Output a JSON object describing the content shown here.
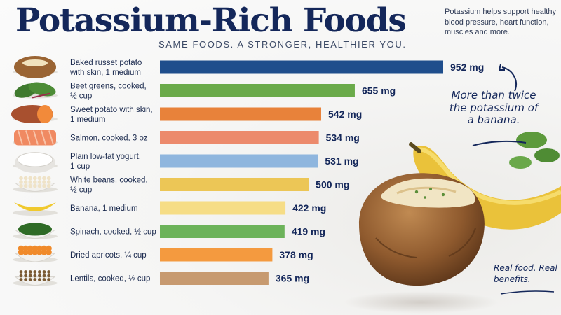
{
  "title": "Potassium-Rich Foods",
  "subtitle": "SAME FOODS. A STRONGER, HEALTHIER YOU.",
  "intro": "Potassium helps support healthy blood pressure, heart function, muscles and more.",
  "callout": "More than twice the potassium of a banana.",
  "tagline": "Real food. Real benefits.",
  "chart_data": {
    "type": "bar",
    "orientation": "horizontal",
    "unit": "mg",
    "categories": [
      "Baked russet potato with skin, 1 medium",
      "Beet greens, cooked, ½ cup",
      "Sweet potato with skin, 1 medium",
      "Salmon, cooked, 3 oz",
      "Plain low-fat yogurt, 1 cup",
      "White beans, cooked, ½ cup",
      "Banana, 1 medium",
      "Spinach, cooked, ½ cup",
      "Dried apricots, ¼ cup",
      "Lentils, cooked, ½ cup"
    ],
    "values": [
      952,
      655,
      542,
      534,
      531,
      500,
      422,
      419,
      378,
      365
    ],
    "value_labels": [
      "952 mg",
      "655 mg",
      "542 mg",
      "534 mg",
      "531 mg",
      "500 mg",
      "422 mg",
      "419 mg",
      "378 mg",
      "365 mg"
    ],
    "label_lines": [
      [
        "Baked russet potato",
        "with skin, 1 medium"
      ],
      [
        "Beet greens, cooked,",
        "½ cup"
      ],
      [
        "Sweet potato with skin,",
        "1 medium"
      ],
      [
        "Salmon, cooked, 3 oz"
      ],
      [
        "Plain low-fat yogurt,",
        "1 cup"
      ],
      [
        "White beans, cooked,",
        "½ cup"
      ],
      [
        "Banana, 1 medium"
      ],
      [
        "Spinach, cooked, ½ cup"
      ],
      [
        "Dried apricots, ¼ cup"
      ],
      [
        "Lentils, cooked, ½ cup"
      ]
    ],
    "colors": [
      "#1f4e8c",
      "#6aaa4a",
      "#e8823a",
      "#ec8a6c",
      "#8fb6de",
      "#ecc656",
      "#f6dd86",
      "#6cb35a",
      "#f49a3f",
      "#c79a70"
    ],
    "icons": [
      "baked-potato-icon",
      "beet-greens-icon",
      "sweet-potato-icon",
      "salmon-icon",
      "yogurt-icon",
      "white-beans-icon",
      "banana-icon",
      "spinach-icon",
      "dried-apricots-icon",
      "lentils-icon"
    ],
    "xlim": [
      0,
      952
    ],
    "grid": false,
    "legend": "none",
    "xlabel": "",
    "ylabel": ""
  }
}
